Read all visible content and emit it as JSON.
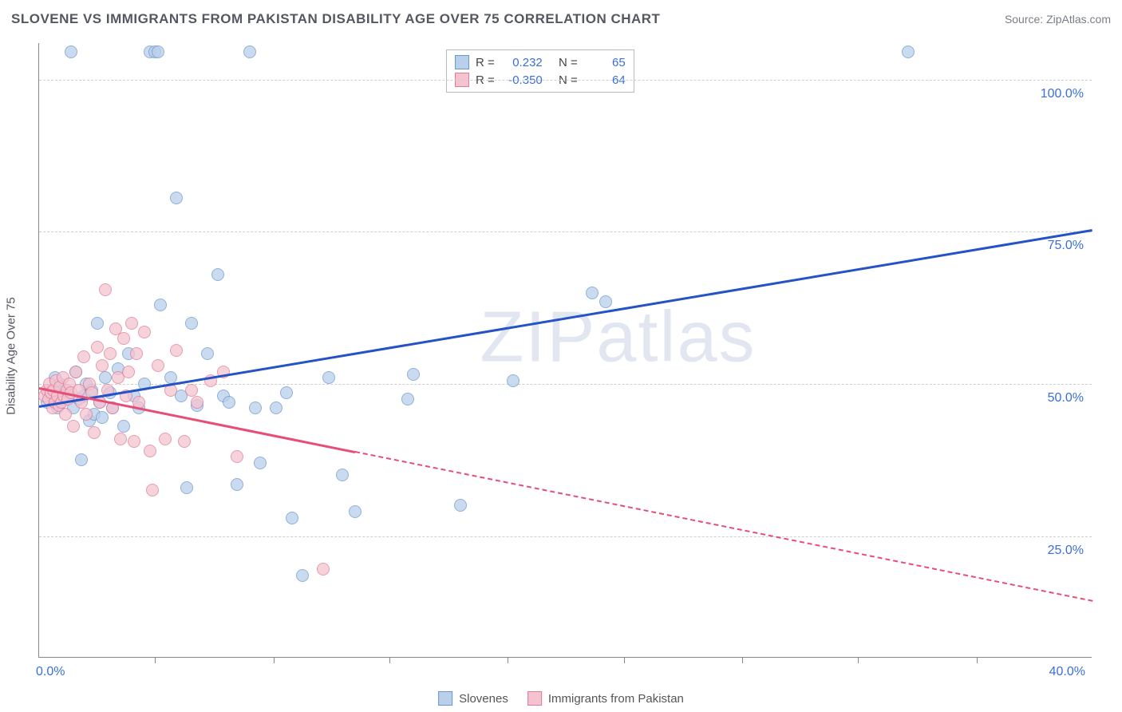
{
  "title": "SLOVENE VS IMMIGRANTS FROM PAKISTAN DISABILITY AGE OVER 75 CORRELATION CHART",
  "source_label": "Source:",
  "source_name": "ZipAtlas.com",
  "watermark": "ZIPatlas",
  "ylabel": "Disability Age Over 75",
  "chart": {
    "type": "scatter",
    "xlim": [
      0,
      40
    ],
    "ylim": [
      5,
      106
    ],
    "x_origin_label": "0.0%",
    "x_end_label": "40.0%",
    "yticks": [
      25.0,
      50.0,
      75.0,
      100.0
    ],
    "ytick_labels": [
      "25.0%",
      "50.0%",
      "75.0%",
      "100.0%"
    ],
    "xticks": [
      4.4,
      8.9,
      13.3,
      17.8,
      22.2,
      26.7,
      31.1,
      35.6
    ],
    "grid_color": "#cfcfcf",
    "background_color": "#ffffff",
    "axis_color": "#888888"
  },
  "series": [
    {
      "name": "Slovenes",
      "marker_fill": "#b9cfea",
      "marker_stroke": "#6a97d1",
      "trend_color": "#2453c7",
      "r": "0.232",
      "n": "65",
      "trend": {
        "x1": 0,
        "y1": 46.5,
        "x2": 40,
        "y2": 75.5,
        "dashed_from_x": null
      },
      "points": [
        [
          0.3,
          47
        ],
        [
          0.4,
          49
        ],
        [
          0.5,
          48
        ],
        [
          0.6,
          51
        ],
        [
          0.7,
          46
        ],
        [
          0.8,
          50
        ],
        [
          0.9,
          47.5
        ],
        [
          1.0,
          49
        ],
        [
          1.1,
          48
        ],
        [
          1.2,
          104.5
        ],
        [
          1.3,
          46
        ],
        [
          1.4,
          52
        ],
        [
          1.5,
          47.5
        ],
        [
          1.6,
          37.5
        ],
        [
          1.7,
          48
        ],
        [
          1.8,
          50
        ],
        [
          1.9,
          44
        ],
        [
          2.0,
          49
        ],
        [
          2.1,
          45
        ],
        [
          2.2,
          60
        ],
        [
          2.3,
          47
        ],
        [
          2.4,
          44.5
        ],
        [
          2.5,
          51
        ],
        [
          2.7,
          48.5
        ],
        [
          2.8,
          46
        ],
        [
          3.0,
          52.5
        ],
        [
          3.2,
          43
        ],
        [
          3.4,
          55
        ],
        [
          3.6,
          48
        ],
        [
          3.8,
          46
        ],
        [
          4.0,
          50
        ],
        [
          4.2,
          104.5
        ],
        [
          4.4,
          104.5
        ],
        [
          4.5,
          104.5
        ],
        [
          4.6,
          63
        ],
        [
          5.0,
          51
        ],
        [
          5.2,
          80.5
        ],
        [
          5.4,
          48
        ],
        [
          5.6,
          33
        ],
        [
          5.8,
          60
        ],
        [
          6.0,
          46.5
        ],
        [
          6.4,
          55
        ],
        [
          6.8,
          68
        ],
        [
          7.0,
          48
        ],
        [
          7.2,
          47
        ],
        [
          7.5,
          33.5
        ],
        [
          8.0,
          104.5
        ],
        [
          8.2,
          46
        ],
        [
          8.4,
          37
        ],
        [
          9.0,
          46
        ],
        [
          9.4,
          48.5
        ],
        [
          9.6,
          28
        ],
        [
          10.0,
          18.5
        ],
        [
          11.0,
          51
        ],
        [
          11.5,
          35
        ],
        [
          12.0,
          29
        ],
        [
          14.0,
          47.5
        ],
        [
          14.2,
          51.5
        ],
        [
          16.0,
          30
        ],
        [
          18.0,
          50.5
        ],
        [
          21.0,
          65
        ],
        [
          21.5,
          63.5
        ],
        [
          33.0,
          104.5
        ]
      ]
    },
    {
      "name": "Immigrants from Pakistan",
      "marker_fill": "#f4c3cf",
      "marker_stroke": "#e07b97",
      "trend_color": "#e84d78",
      "r": "-0.350",
      "n": "64",
      "trend": {
        "x1": 0,
        "y1": 49.5,
        "x2": 40,
        "y2": 14.5,
        "dashed_from_x": 12
      },
      "points": [
        [
          0.2,
          48
        ],
        [
          0.3,
          49
        ],
        [
          0.35,
          47.5
        ],
        [
          0.4,
          50
        ],
        [
          0.45,
          48.5
        ],
        [
          0.5,
          46
        ],
        [
          0.55,
          49
        ],
        [
          0.6,
          47
        ],
        [
          0.65,
          50.5
        ],
        [
          0.7,
          48
        ],
        [
          0.75,
          46.5
        ],
        [
          0.8,
          49.5
        ],
        [
          0.85,
          47
        ],
        [
          0.9,
          51
        ],
        [
          0.95,
          48
        ],
        [
          1.0,
          45
        ],
        [
          1.05,
          49
        ],
        [
          1.1,
          47.5
        ],
        [
          1.15,
          50
        ],
        [
          1.2,
          48.5
        ],
        [
          1.3,
          43
        ],
        [
          1.4,
          52
        ],
        [
          1.5,
          49
        ],
        [
          1.6,
          47
        ],
        [
          1.7,
          54.5
        ],
        [
          1.8,
          45
        ],
        [
          1.9,
          50
        ],
        [
          2.0,
          48.5
        ],
        [
          2.1,
          42
        ],
        [
          2.2,
          56
        ],
        [
          2.3,
          47
        ],
        [
          2.4,
          53
        ],
        [
          2.5,
          65.5
        ],
        [
          2.6,
          49
        ],
        [
          2.7,
          55
        ],
        [
          2.8,
          46
        ],
        [
          2.9,
          59
        ],
        [
          3.0,
          51
        ],
        [
          3.1,
          41
        ],
        [
          3.2,
          57.5
        ],
        [
          3.3,
          48
        ],
        [
          3.4,
          52
        ],
        [
          3.5,
          60
        ],
        [
          3.6,
          40.5
        ],
        [
          3.7,
          55
        ],
        [
          3.8,
          47
        ],
        [
          4.0,
          58.5
        ],
        [
          4.2,
          39
        ],
        [
          4.3,
          32.5
        ],
        [
          4.5,
          53
        ],
        [
          4.8,
          41
        ],
        [
          5.0,
          49
        ],
        [
          5.2,
          55.5
        ],
        [
          5.5,
          40.5
        ],
        [
          5.8,
          49
        ],
        [
          6.0,
          47
        ],
        [
          6.5,
          50.5
        ],
        [
          7.0,
          52
        ],
        [
          7.5,
          38
        ],
        [
          10.8,
          19.5
        ]
      ]
    }
  ],
  "legend": {
    "r_label": "R =",
    "n_label": "N ="
  }
}
